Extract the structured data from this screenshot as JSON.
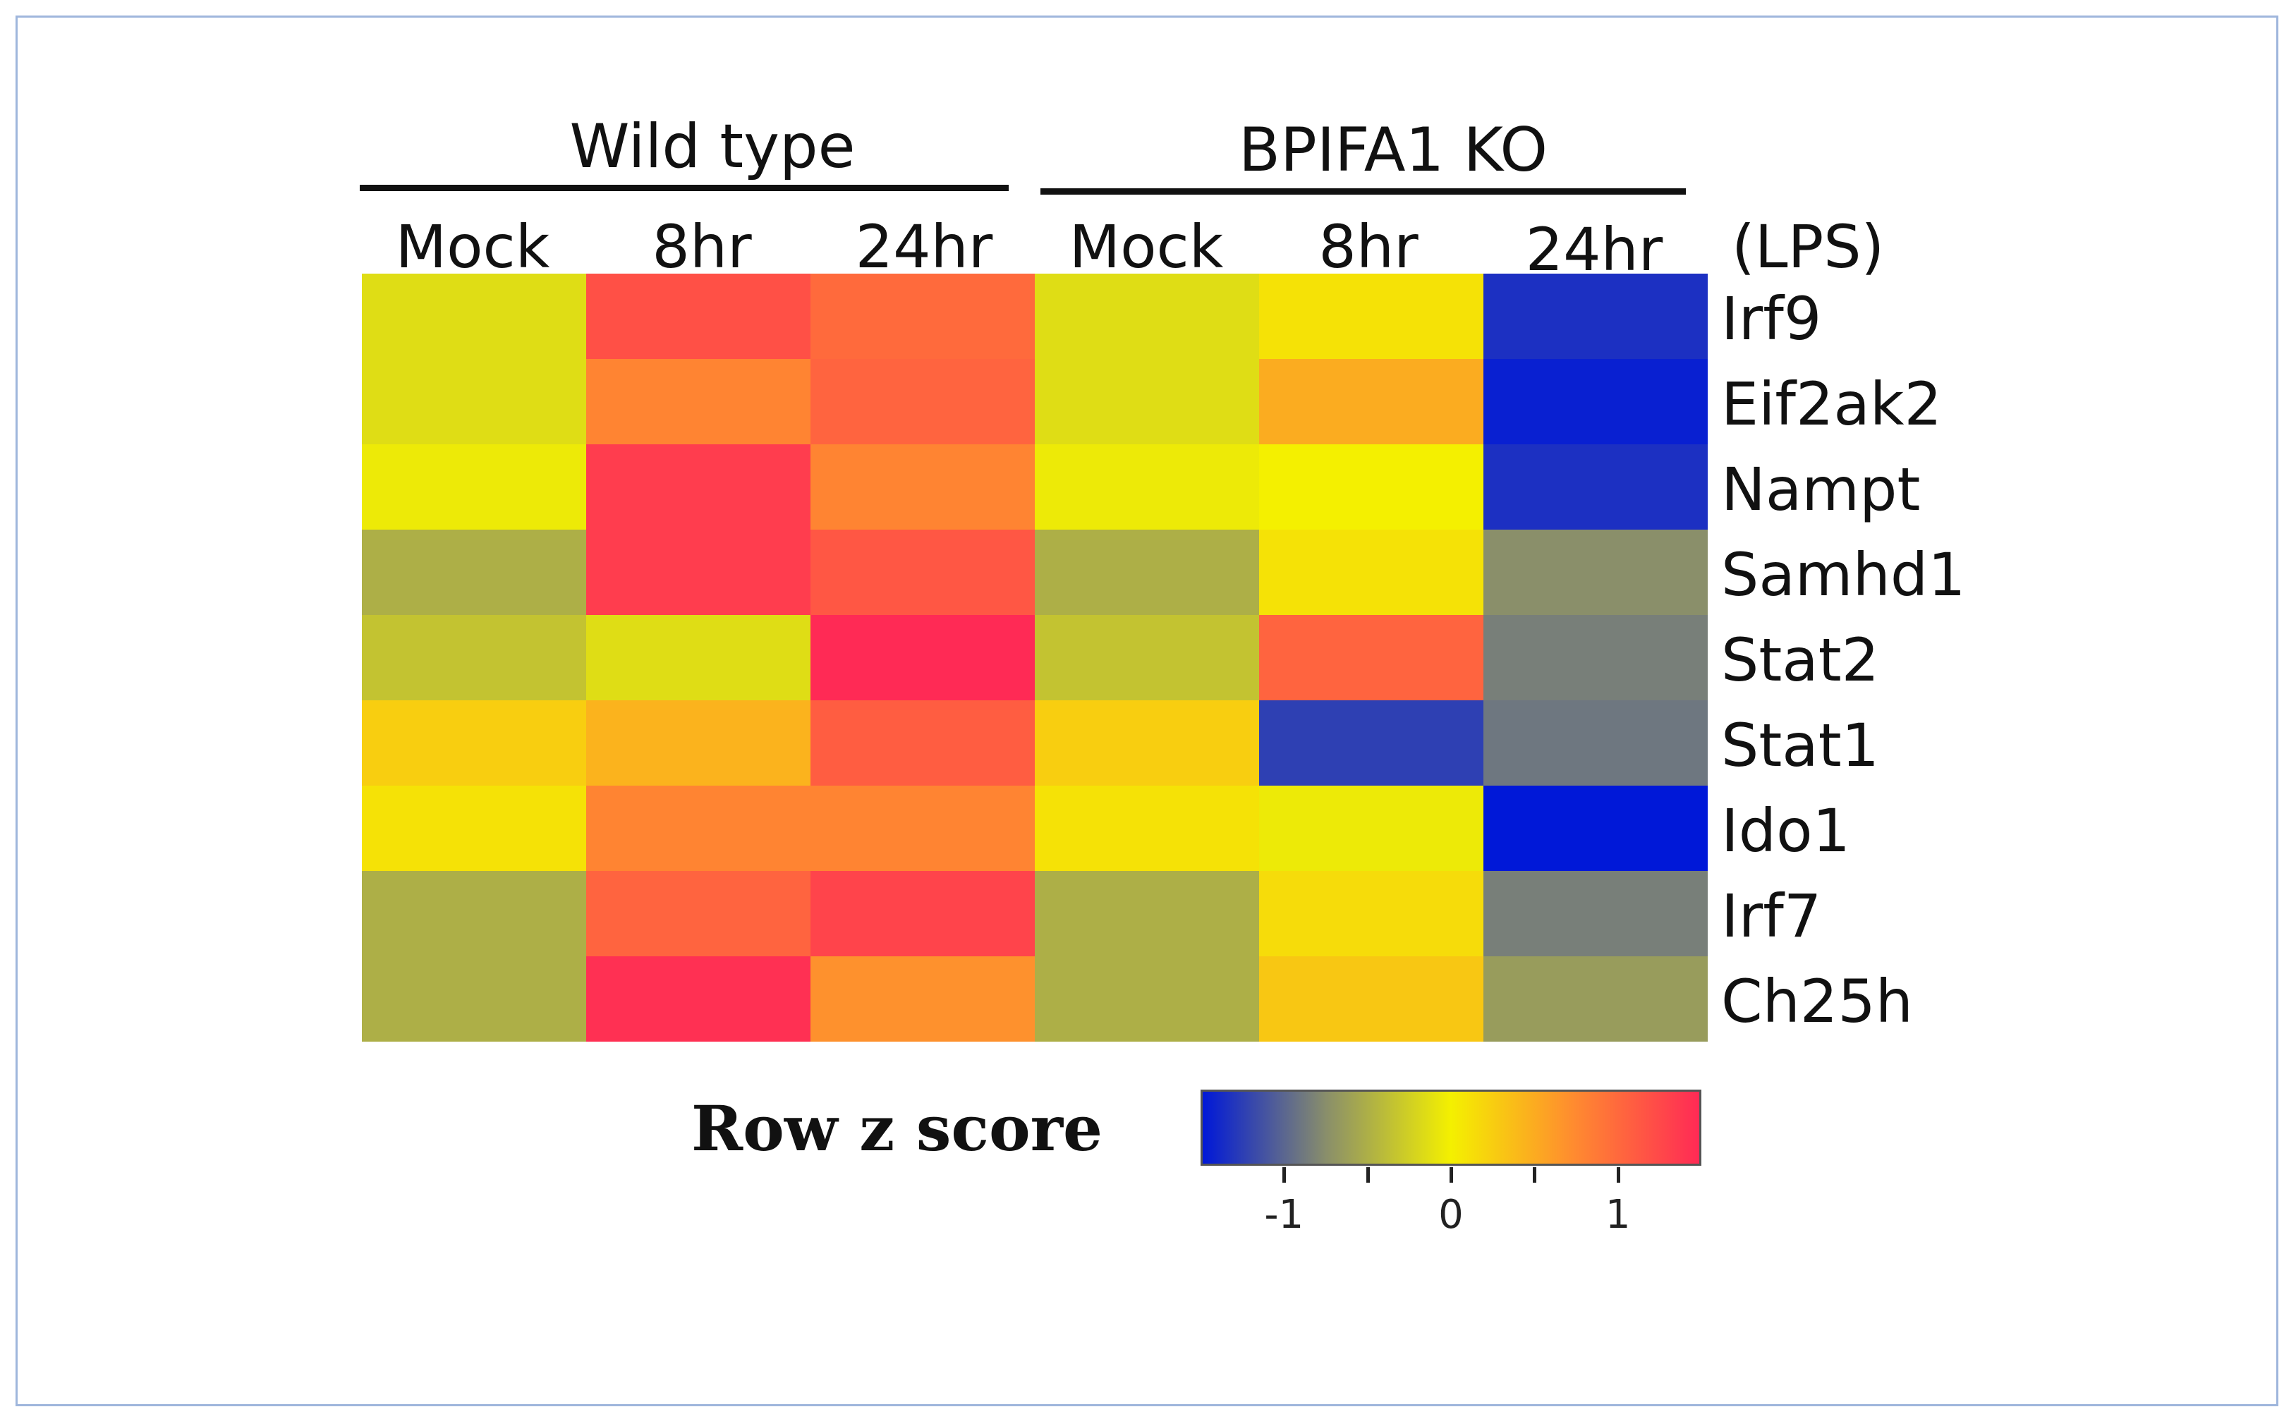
{
  "chart_data": {
    "type": "heatmap",
    "column_groups": [
      {
        "label": "Wild type",
        "columns": [
          "Mock",
          "8hr",
          "24hr"
        ]
      },
      {
        "label": "BPIFA1 KO",
        "columns": [
          "Mock",
          "8hr",
          "24hr"
        ]
      }
    ],
    "columns": [
      "Mock",
      "8hr",
      "24hr",
      "Mock",
      "8hr",
      "24hr"
    ],
    "column_axis_label": "(LPS)",
    "rows": [
      "Irf9",
      "Eif2ak2",
      "Nampt",
      "Samhd1",
      "Stat2",
      "Stat1",
      "Ido1",
      "Irf7",
      "Ch25h"
    ],
    "values": [
      [
        -0.15,
        1.2,
        1.0,
        -0.15,
        0.1,
        -1.35
      ],
      [
        -0.15,
        0.8,
        1.05,
        -0.15,
        0.5,
        -1.45
      ],
      [
        -0.05,
        1.35,
        0.8,
        -0.05,
        0.0,
        -1.35
      ],
      [
        -0.5,
        1.35,
        1.15,
        -0.5,
        0.1,
        -0.75
      ],
      [
        -0.35,
        -0.15,
        1.55,
        -0.35,
        1.05,
        -0.85
      ],
      [
        0.25,
        0.45,
        1.1,
        0.25,
        -1.25,
        -0.9
      ],
      [
        0.1,
        0.8,
        0.8,
        0.1,
        -0.05,
        -1.55
      ],
      [
        -0.5,
        1.05,
        1.3,
        -0.5,
        0.15,
        -0.85
      ],
      [
        -0.5,
        1.45,
        0.7,
        -0.5,
        0.3,
        -0.65
      ]
    ],
    "colorbar": {
      "title": "Row z score",
      "range": [
        -1.5,
        1.5
      ],
      "tick_labels": [
        "-1",
        "0",
        "1"
      ],
      "tick_values": [
        -1,
        0,
        1
      ],
      "minor_ticks": [
        -0.5,
        0.5
      ],
      "colors": [
        "#0018d8",
        "#8a8f6a",
        "#f4f000",
        "#ff8a30",
        "#ff2a55"
      ]
    }
  }
}
